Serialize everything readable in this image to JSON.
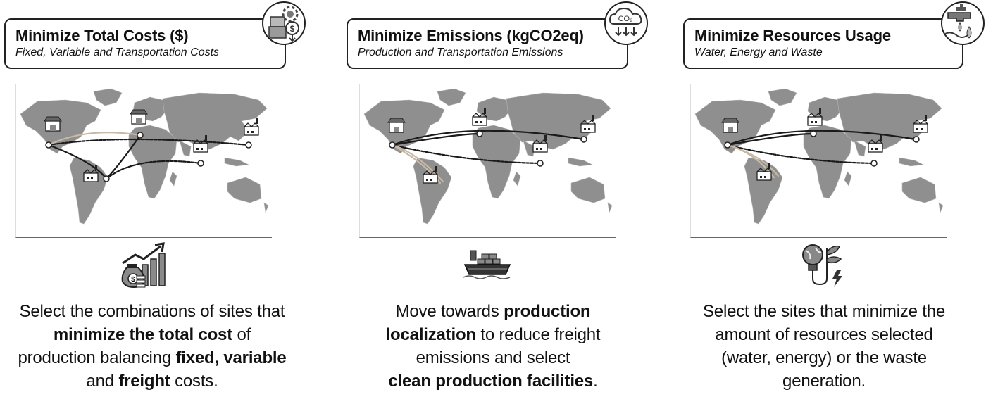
{
  "columns": [
    {
      "title": "Minimize Total Costs ($)",
      "subtitle": "Fixed, Variable and Transportation Costs",
      "badge_icon": "money-gear-icon",
      "mid_icon": "money-growth-chart-icon",
      "desc": {
        "line1": "Select the combinations of sites that",
        "l2_bold": "minimize the total cost",
        "l2_rest": " of",
        "l3_pre": "production balancing ",
        "l3_bold": "fixed, variable",
        "l4_pre": "and ",
        "l4_bold": "freight",
        "l4_rest": " costs."
      }
    },
    {
      "title": "Minimize Emissions (kgCO2eq)",
      "subtitle": "Production and Transportation Emissions",
      "badge_icon": "co2-cloud-icon",
      "badge_label": "CO₂",
      "mid_icon": "cargo-ship-icon",
      "desc": {
        "l1_pre": "Move towards ",
        "l1_bold": "production",
        "l2_bold": "localization",
        "l2_rest": " to reduce freight",
        "line3": "emissions and select",
        "l4_bold": "clean production facilities",
        "l4_rest": "."
      }
    },
    {
      "title": "Minimize Resources Usage",
      "subtitle": "Water, Energy and Waste",
      "badge_icon": "water-tap-icon",
      "mid_icon": "bulb-plant-energy-icon",
      "desc": {
        "line1": "Select the sites that minimize the",
        "line2": "amount of resources selected",
        "line3": "(water, energy) or the waste",
        "line4": "generation."
      }
    }
  ],
  "colors": {
    "map_land": "#8f8f8f",
    "route_dark": "#1a1a1a",
    "route_light": "#c8b8a6",
    "border": "#222222"
  }
}
